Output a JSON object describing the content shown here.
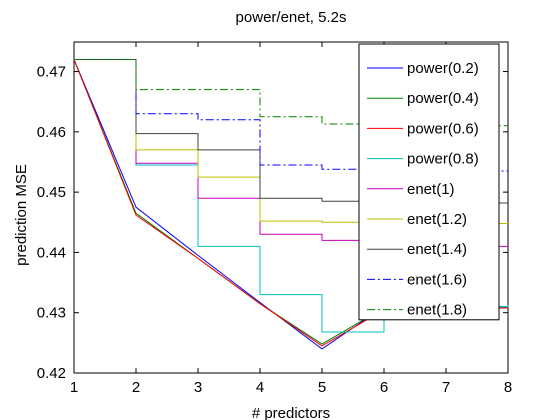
{
  "chart_data": {
    "type": "line",
    "title": "power/enet, 5.2s",
    "xlabel": "# predictors",
    "ylabel": "prediction MSE",
    "xlim": [
      1,
      8
    ],
    "ylim": [
      0.42,
      0.4749
    ],
    "xticks": [
      "1",
      "2",
      "3",
      "4",
      "5",
      "6",
      "7",
      "8"
    ],
    "yticks": [
      "0.42",
      "0.43",
      "0.44",
      "0.45",
      "0.46",
      "0.47"
    ],
    "ytick_values": [
      0.42,
      0.43,
      0.44,
      0.45,
      0.46,
      0.47
    ],
    "grid": false,
    "legend_position": "top-right",
    "x": [
      1,
      2,
      3,
      4,
      5,
      6,
      7,
      8
    ],
    "series": [
      {
        "name": "power(0.2)",
        "color": "#0000ff",
        "dash": "solid",
        "step": false,
        "values": [
          0.472,
          0.4475,
          0.4395,
          0.4317,
          0.424,
          0.431,
          0.431,
          0.431
        ]
      },
      {
        "name": "power(0.4)",
        "color": "#008000",
        "dash": "solid",
        "step": false,
        "values": [
          0.472,
          0.4465,
          0.439,
          0.4315,
          0.4248,
          0.4308,
          0.431,
          0.431
        ]
      },
      {
        "name": "power(0.6)",
        "color": "#ff0000",
        "dash": "solid",
        "step": false,
        "values": [
          0.472,
          0.4462,
          0.439,
          0.4315,
          0.4245,
          0.4305,
          0.4305,
          0.4308
        ]
      },
      {
        "name": "power(0.8)",
        "color": "#00bfbf",
        "dash": "solid",
        "step": true,
        "values": [
          0.472,
          0.4545,
          0.441,
          0.433,
          0.4268,
          0.431,
          0.431,
          0.4312
        ]
      },
      {
        "name": "enet(1)",
        "color": "#bf00bf",
        "dash": "solid",
        "step": true,
        "values": [
          0.472,
          0.4548,
          0.449,
          0.443,
          0.442,
          0.4415,
          0.441,
          0.441
        ]
      },
      {
        "name": "enet(1.2)",
        "color": "#bfbf00",
        "dash": "solid",
        "step": true,
        "values": [
          0.472,
          0.457,
          0.4525,
          0.4452,
          0.445,
          0.4448,
          0.4448,
          0.4448
        ]
      },
      {
        "name": "enet(1.4)",
        "color": "#404040",
        "dash": "solid",
        "step": true,
        "values": [
          0.472,
          0.4597,
          0.457,
          0.449,
          0.4485,
          0.4482,
          0.4482,
          0.4482
        ]
      },
      {
        "name": "enet(1.6)",
        "color": "#0000ff",
        "dash": "dashdot",
        "step": true,
        "values": [
          0.472,
          0.463,
          0.462,
          0.4545,
          0.4538,
          0.4535,
          0.4535,
          0.4535
        ]
      },
      {
        "name": "enet(1.8)",
        "color": "#008000",
        "dash": "dashdot",
        "step": true,
        "values": [
          0.472,
          0.467,
          0.467,
          0.4625,
          0.4613,
          0.461,
          0.461,
          0.461
        ]
      }
    ]
  }
}
